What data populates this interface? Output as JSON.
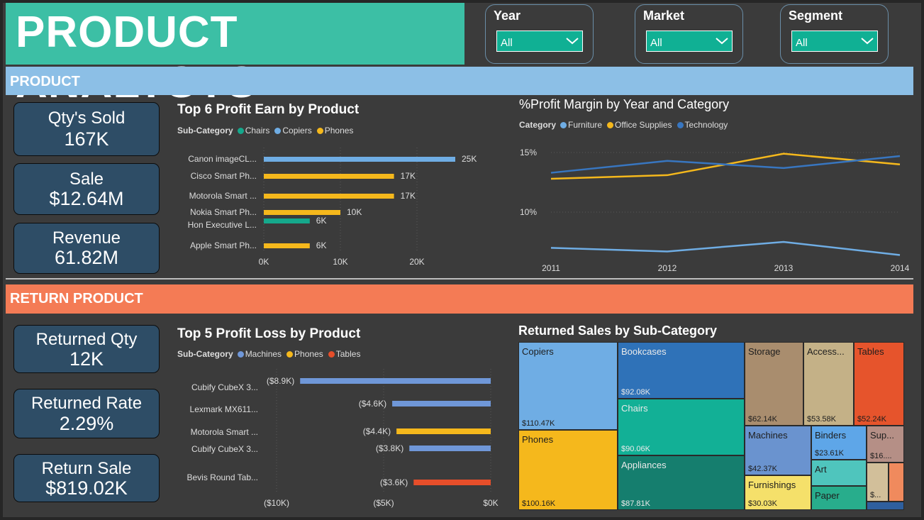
{
  "title": "PRODUCT ANALYSYS",
  "slicers": [
    {
      "label": "Year",
      "value": "All"
    },
    {
      "label": "Market",
      "value": "All"
    },
    {
      "label": "Segment",
      "value": "All"
    }
  ],
  "sections": {
    "product": "PRODUCT",
    "return": "RETURN PRODUCT"
  },
  "kpis_product": [
    {
      "label": "Qty's Sold",
      "value": "167K"
    },
    {
      "label": "Sale",
      "value": "$12.64M"
    },
    {
      "label": "Revenue",
      "value": "61.82M"
    }
  ],
  "kpis_return": [
    {
      "label": "Returned Qty",
      "value": "12K"
    },
    {
      "label": "Returned Rate",
      "value": "2.29%"
    },
    {
      "label": "Return Sale",
      "value": "$819.02K"
    }
  ],
  "colors": {
    "teal": "#15a88c",
    "lightblue": "#6fade4",
    "yellow": "#f5b81c",
    "blue": "#3876c0",
    "red": "#e64e2a",
    "machines": "#6f97d8"
  },
  "chart_data": [
    {
      "type": "bar",
      "title": "Top 6 Profit Earn by Product",
      "legend_title": "Sub-Category",
      "legend": [
        {
          "name": "Chairs",
          "color": "#15a88c"
        },
        {
          "name": "Copiers",
          "color": "#6fade4"
        },
        {
          "name": "Phones",
          "color": "#f5b81c"
        }
      ],
      "categories": [
        "Canon imageCL...",
        "Cisco Smart Ph...",
        "Motorola Smart ...",
        "Nokia Smart Ph...",
        "Hon Executive L...",
        "Apple Smart Ph..."
      ],
      "values": [
        25000,
        17000,
        17000,
        10000,
        6000,
        6000
      ],
      "data_labels": [
        "25K",
        "17K",
        "17K",
        "10K",
        "6K",
        "6K"
      ],
      "series_of_bar": [
        "Copiers",
        "Phones",
        "Phones",
        "Phones",
        "Chairs",
        "Phones"
      ],
      "xlim": [
        0,
        25000
      ],
      "xticks": [
        {
          "v": 0,
          "label": "0K"
        },
        {
          "v": 10000,
          "label": "10K"
        },
        {
          "v": 20000,
          "label": "20K"
        }
      ]
    },
    {
      "type": "line",
      "title": "%Profit Margin by Year and Category",
      "legend_title": "Category",
      "x": [
        "2011",
        "2012",
        "2013",
        "2014"
      ],
      "series": [
        {
          "name": "Furniture",
          "color": "#6fade4",
          "values": [
            7.0,
            6.7,
            7.5,
            6.4
          ]
        },
        {
          "name": "Office Supplies",
          "color": "#f5b81c",
          "values": [
            12.8,
            13.1,
            14.9,
            14.0
          ]
        },
        {
          "name": "Technology",
          "color": "#3876c0",
          "values": [
            13.3,
            14.3,
            13.7,
            14.7
          ]
        }
      ],
      "ylim": [
        5,
        16
      ],
      "yticks": [
        {
          "v": 10,
          "label": "10%"
        },
        {
          "v": 15,
          "label": "15%"
        }
      ]
    },
    {
      "type": "bar",
      "title": "Top 5 Profit Loss by Product",
      "legend_title": "Sub-Category",
      "legend": [
        {
          "name": "Machines",
          "color": "#6f97d8"
        },
        {
          "name": "Phones",
          "color": "#f5b81c"
        },
        {
          "name": "Tables",
          "color": "#e64e2a"
        }
      ],
      "categories": [
        "Cubify CubeX 3...",
        "Lexmark MX611...",
        "Motorola Smart ...",
        "Cubify CubeX 3...",
        "Bevis Round Tab..."
      ],
      "values": [
        -8900,
        -4600,
        -4400,
        -3800,
        -3600
      ],
      "data_labels": [
        "($8.9K)",
        "($4.6K)",
        "($4.4K)",
        "($3.8K)",
        "($3.6K)"
      ],
      "series_of_bar": [
        "Machines",
        "Machines",
        "Phones",
        "Machines",
        "Tables"
      ],
      "xlim": [
        -10000,
        0
      ],
      "xticks": [
        {
          "v": -10000,
          "label": "($10K)"
        },
        {
          "v": -5000,
          "label": "($5K)"
        },
        {
          "v": 0,
          "label": "$0K"
        }
      ]
    },
    {
      "type": "treemap",
      "title": "Returned Sales by Sub-Category",
      "items": [
        {
          "name": "Copiers",
          "value": "$110.47K",
          "color": "#6fade4"
        },
        {
          "name": "Phones",
          "value": "$100.16K",
          "color": "#f5b81c"
        },
        {
          "name": "Bookcases",
          "value": "$92.08K",
          "color": "#2f72b8"
        },
        {
          "name": "Chairs",
          "value": "$90.06K",
          "color": "#12b096"
        },
        {
          "name": "Appliances",
          "value": "$87.81K",
          "color": "#157e6e"
        },
        {
          "name": "Storage",
          "value": "$62.14K",
          "color": "#a98d6e"
        },
        {
          "name": "Access...",
          "value": "$53.58K",
          "color": "#c4b187"
        },
        {
          "name": "Tables",
          "value": "$52.24K",
          "color": "#e6542c"
        },
        {
          "name": "Machines",
          "value": "$42.37K",
          "color": "#6a93cf"
        },
        {
          "name": "Furnishings",
          "value": "$30.03K",
          "color": "#f5e06a"
        },
        {
          "name": "Binders",
          "value": "$23.61K",
          "color": "#5ea6e8"
        },
        {
          "name": "Art",
          "value": "",
          "color": "#4fc5bd"
        },
        {
          "name": "Paper",
          "value": "",
          "color": "#28ad8c"
        },
        {
          "name": "Sup...",
          "value": "$16....",
          "color": "#b58f86"
        },
        {
          "name": "",
          "value": "$...",
          "color": "#d2bf9a"
        }
      ]
    }
  ]
}
